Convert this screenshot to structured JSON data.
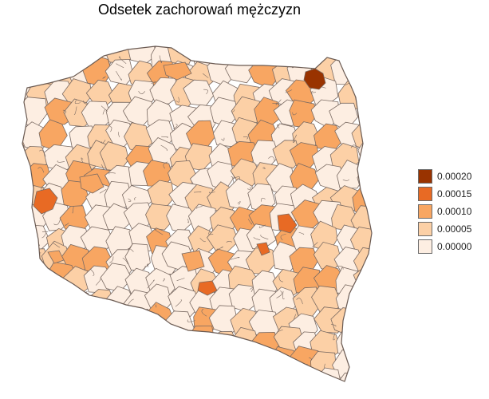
{
  "map": {
    "title": "Odsetek zachorowań mężczyzn",
    "region_outline_color": "#7a6a62",
    "legend": {
      "items": [
        {
          "label": "0.00020",
          "color": "#993300"
        },
        {
          "label": "0.00015",
          "color": "#e86a24"
        },
        {
          "label": "0.00010",
          "color": "#f8a662"
        },
        {
          "label": "0.00005",
          "color": "#fcd0a6"
        },
        {
          "label": "0.00000",
          "color": "#fdeee2"
        }
      ]
    }
  }
}
